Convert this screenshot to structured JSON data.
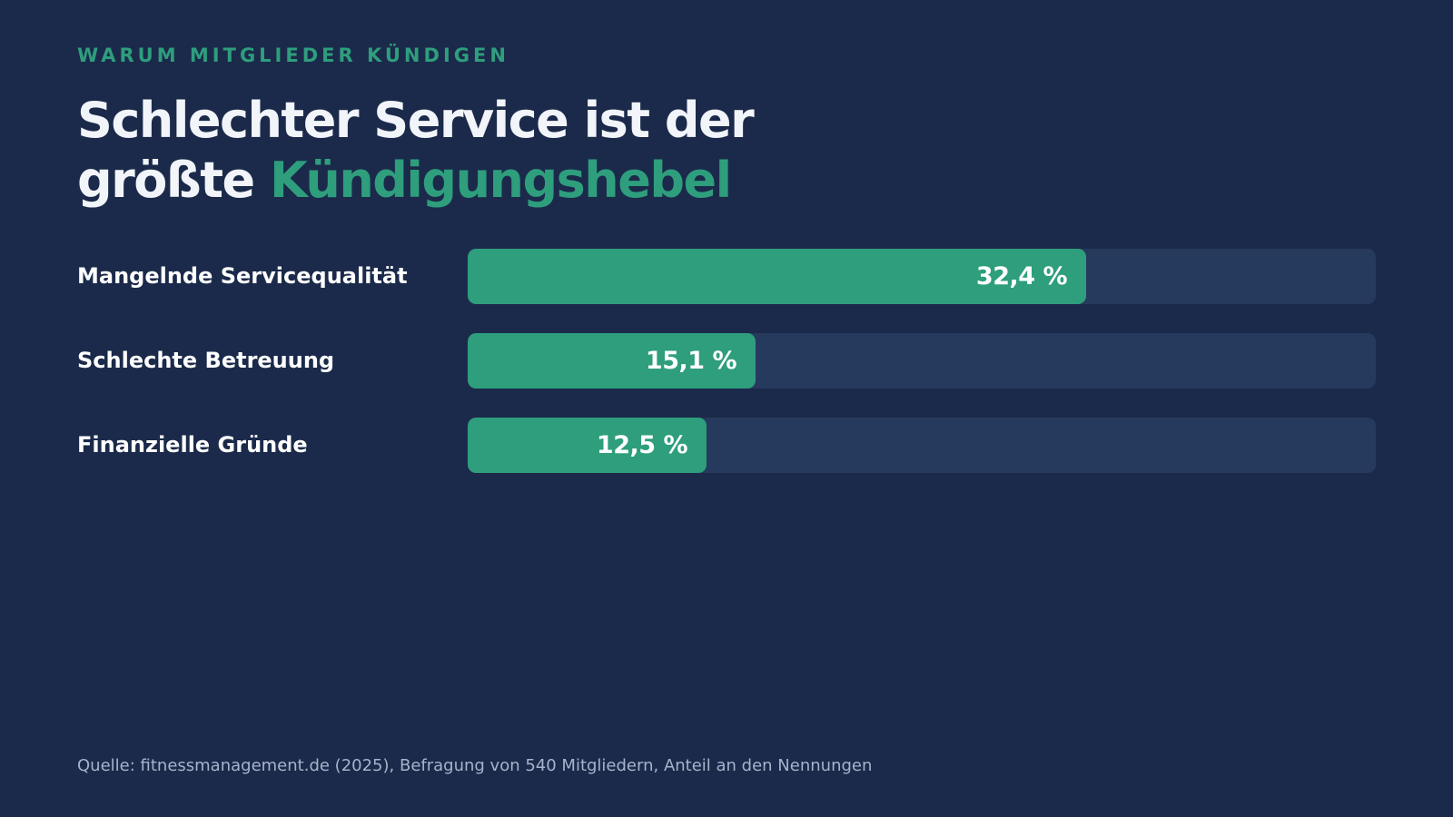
{
  "eyebrow": "WARUM MITGLIEDER KÜNDIGEN",
  "headline": {
    "line1": "Schlechter Service ist der",
    "line2_plain": "größte",
    "line2_accent": "Kündigungshebel"
  },
  "colors": {
    "background": "#1b2a4a",
    "accent": "#2e9e7d",
    "track": "#263a5e",
    "text": "#f1f4f9",
    "muted": "#a6b3cc"
  },
  "chart_data": {
    "type": "bar",
    "orientation": "horizontal",
    "categories": [
      "Mangelnde Servicequalität",
      "Schlechte Betreuung",
      "Finanzielle Gründe"
    ],
    "values": [
      32.4,
      15.1,
      12.5
    ],
    "value_labels": [
      "32,4 %",
      "15,1 %",
      "12,5 %"
    ],
    "xlim": [
      0,
      47.6
    ],
    "grid": false,
    "legend": "none"
  },
  "source": "Quelle: fitnessmanagement.de (2025), Befragung von 540 Mitgliedern, Anteil an den Nennungen"
}
